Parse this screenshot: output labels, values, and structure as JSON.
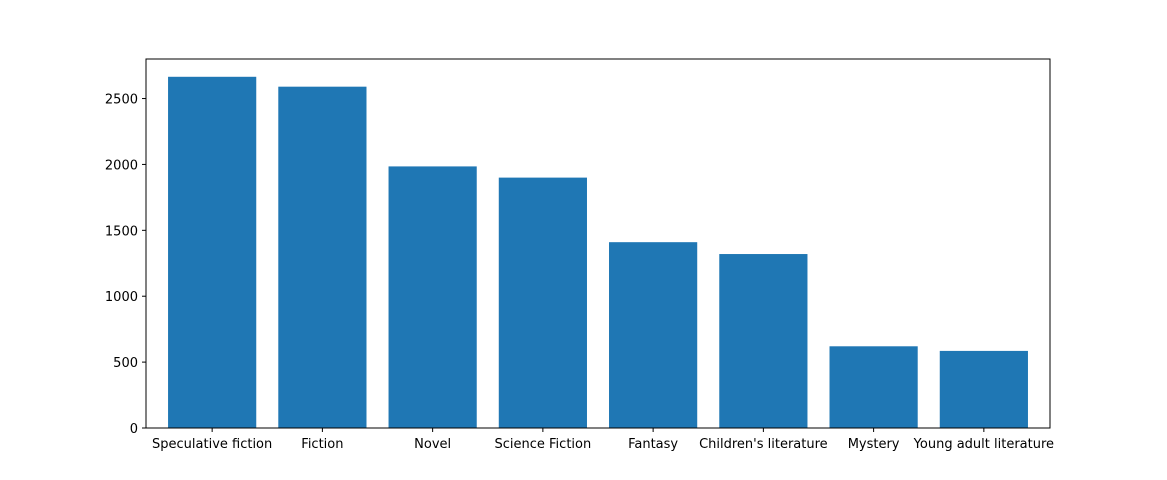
{
  "chart_data": {
    "type": "bar",
    "title": "",
    "xlabel": "",
    "ylabel": "",
    "categories": [
      "Speculative fiction",
      "Fiction",
      "Novel",
      "Science Fiction",
      "Fantasy",
      "Children's literature",
      "Mystery",
      "Young adult literature"
    ],
    "values": [
      2665,
      2590,
      1985,
      1900,
      1410,
      1320,
      620,
      585
    ],
    "ylim": [
      0,
      2800
    ],
    "yticks": [
      0,
      500,
      1000,
      1500,
      2000,
      2500
    ],
    "grid": false,
    "colors": {
      "bar": "#1f77b4",
      "axis": "#000000",
      "background": "#ffffff"
    }
  }
}
